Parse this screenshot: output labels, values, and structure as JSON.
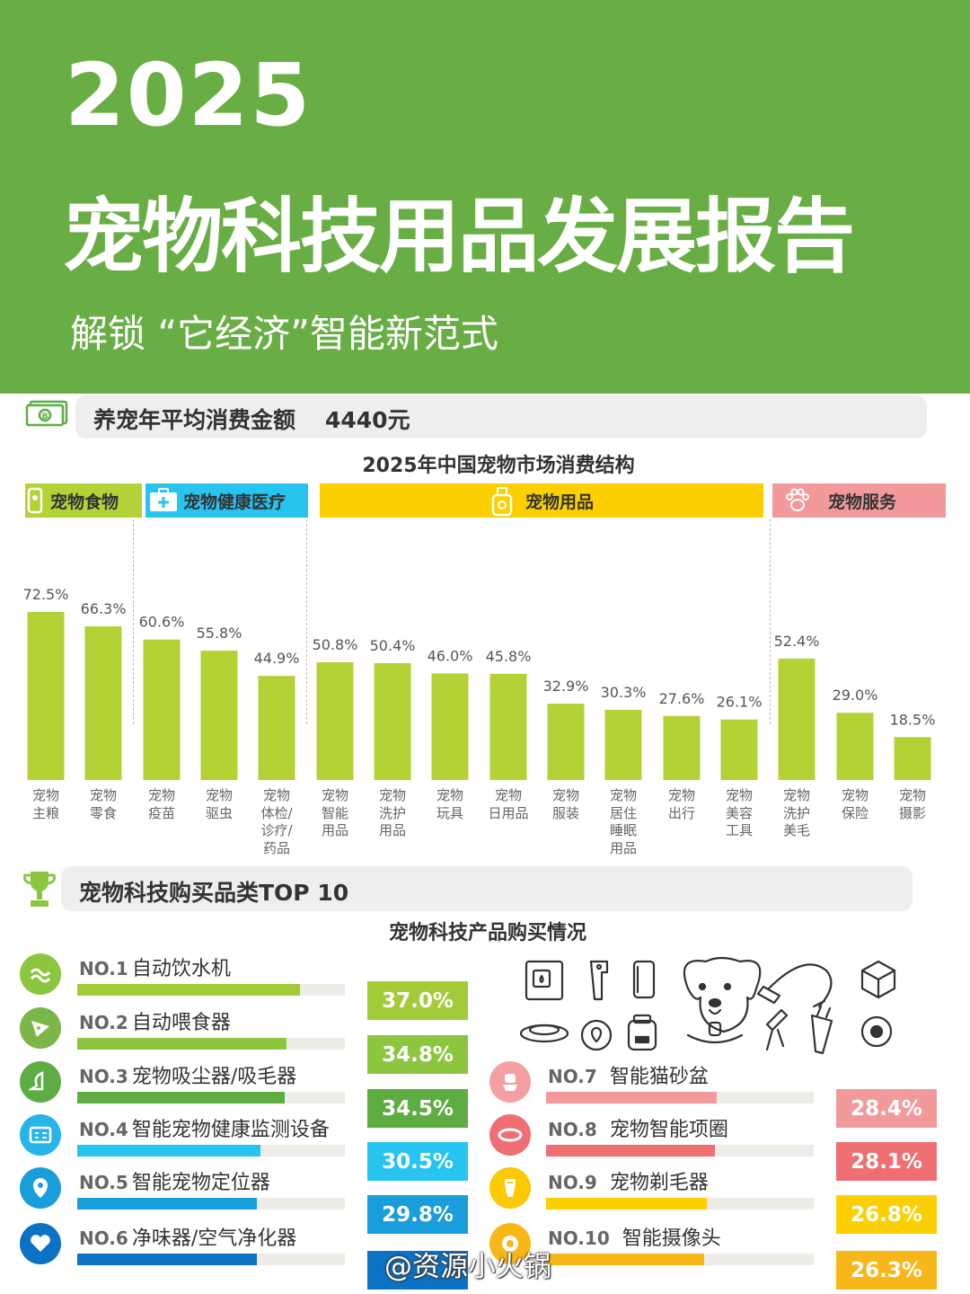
{
  "header": {
    "year": "2025",
    "title": "宠物科技用品发展报告",
    "subtitle": "解锁 “它经济”智能新范式",
    "bg_color": "#69ae45"
  },
  "spending": {
    "label": "养宠年平均消费金额",
    "value": "4440元",
    "icon": "money-icon"
  },
  "chart_data": [
    {
      "type": "bar",
      "title": "2025年中国宠物市场消费结构",
      "groups": [
        {
          "name": "宠物食物",
          "color": "#b2d235",
          "icon": "pet-food-icon",
          "span": [
            0,
            1
          ]
        },
        {
          "name": "宠物健康医疗",
          "color": "#27c4ef",
          "icon": "medical-kit-icon",
          "span": [
            2,
            4
          ]
        },
        {
          "name": "宠物用品",
          "color": "#fcd000",
          "icon": "shampoo-bottle-icon",
          "span": [
            5,
            12
          ]
        },
        {
          "name": "宠物服务",
          "color": "#f29a9b",
          "icon": "paw-icon",
          "span": [
            13,
            15
          ]
        }
      ],
      "categories": [
        "宠物\n主粮",
        "宠物\n零食",
        "宠物\n疫苗",
        "宠物\n驱虫",
        "宠物\n体检/\n诊疗/\n药品",
        "宠物\n智能\n用品",
        "宠物\n洗护\n用品",
        "宠物\n玩具",
        "宠物\n日用品",
        "宠物\n服装",
        "宠物\n居住\n睡眠\n用品",
        "宠物\n出行",
        "宠物\n美容\n工具",
        "宠物\n洗护\n美毛",
        "宠物\n保险",
        "宠物\n摄影"
      ],
      "values": [
        72.5,
        66.3,
        60.6,
        55.8,
        44.9,
        50.8,
        50.4,
        46.0,
        45.8,
        32.9,
        30.3,
        27.6,
        26.1,
        52.4,
        29.0,
        18.5
      ],
      "value_labels": [
        "72.5%",
        "66.3%",
        "60.6%",
        "55.8%",
        "44.9%",
        "50.8%",
        "50.4%",
        "46.0%",
        "45.8%",
        "32.9%",
        "30.3%",
        "27.6%",
        "26.1%",
        "52.4%",
        "29.0%",
        "18.5%"
      ],
      "unit": "%",
      "bar_color": "#b2d235"
    },
    {
      "type": "bar",
      "title": "宠物科技产品购买情况",
      "categories": [
        "自动饮水机",
        "自动喂食器",
        "宠物吸尘器/吸毛器",
        "智能宠物健康监测设备",
        "智能宠物定位器",
        "净味器/空气净化器",
        "智能猫砂盆",
        "宠物智能项圈",
        "宠物剃毛器",
        "智能摄像头"
      ],
      "ranks": [
        "NO.1",
        "NO.2",
        "NO.3",
        "NO.4",
        "NO.5",
        "NO.6",
        "NO.7",
        "NO.8",
        "NO.9",
        "NO.10"
      ],
      "values": [
        37.0,
        34.8,
        34.5,
        30.5,
        29.8,
        29.8,
        28.4,
        28.1,
        26.8,
        26.3
      ],
      "value_labels": [
        "37.0%",
        "34.8%",
        "34.5%",
        "30.5%",
        "29.8%",
        "",
        "28.4%",
        "28.1%",
        "26.8%",
        "26.3%"
      ],
      "unit": "%"
    }
  ],
  "top10": {
    "title": "宠物科技购买品类TOP 10",
    "icon": "trophy-icon",
    "items": [
      {
        "rank": "NO.1",
        "name": "自动饮水机",
        "pct": "37.0%",
        "icon": "water-icon",
        "color": "#a3cb38",
        "icon_color": "#8cc63f"
      },
      {
        "rank": "NO.2",
        "name": "自动喂食器",
        "pct": "34.8%",
        "icon": "feeder-icon",
        "color": "#8cc63f",
        "icon_color": "#7ab648"
      },
      {
        "rank": "NO.3",
        "name": "宠物吸尘器/吸毛器",
        "pct": "34.5%",
        "icon": "vacuum-icon",
        "color": "#5ead43",
        "icon_color": "#5ead43"
      },
      {
        "rank": "NO.4",
        "name": "智能宠物健康监测设备",
        "pct": "30.5%",
        "icon": "health-card-icon",
        "color": "#27c4ef",
        "icon_color": "#27b4e8"
      },
      {
        "rank": "NO.5",
        "name": "智能宠物定位器",
        "pct": "29.8%",
        "icon": "location-pin-icon",
        "color": "#1a9ddb",
        "icon_color": "#1a9ddb"
      },
      {
        "rank": "NO.6",
        "name": "净味器/空气净化器",
        "pct": "",
        "icon": "heart-icon",
        "color": "#0b72c4",
        "icon_color": "#0b72c4"
      },
      {
        "rank": "NO.7",
        "name": "智能猫砂盆",
        "pct": "28.4%",
        "icon": "litter-box-icon",
        "color": "#f29a9b",
        "icon_color": "#f4a0a2"
      },
      {
        "rank": "NO.8",
        "name": "宠物智能项圈",
        "pct": "28.1%",
        "icon": "collar-icon",
        "color": "#ef6f73",
        "icon_color": "#ef6f73"
      },
      {
        "rank": "NO.9",
        "name": "宠物剃毛器",
        "pct": "26.8%",
        "icon": "trimmer-icon",
        "color": "#fcd000",
        "icon_color": "#fcc800"
      },
      {
        "rank": "NO.10",
        "name": "智能摄像头",
        "pct": "26.3%",
        "icon": "camera-icon",
        "color": "#f7b718",
        "icon_color": "#f7b718"
      }
    ]
  },
  "watermark": "@资源小火锅"
}
